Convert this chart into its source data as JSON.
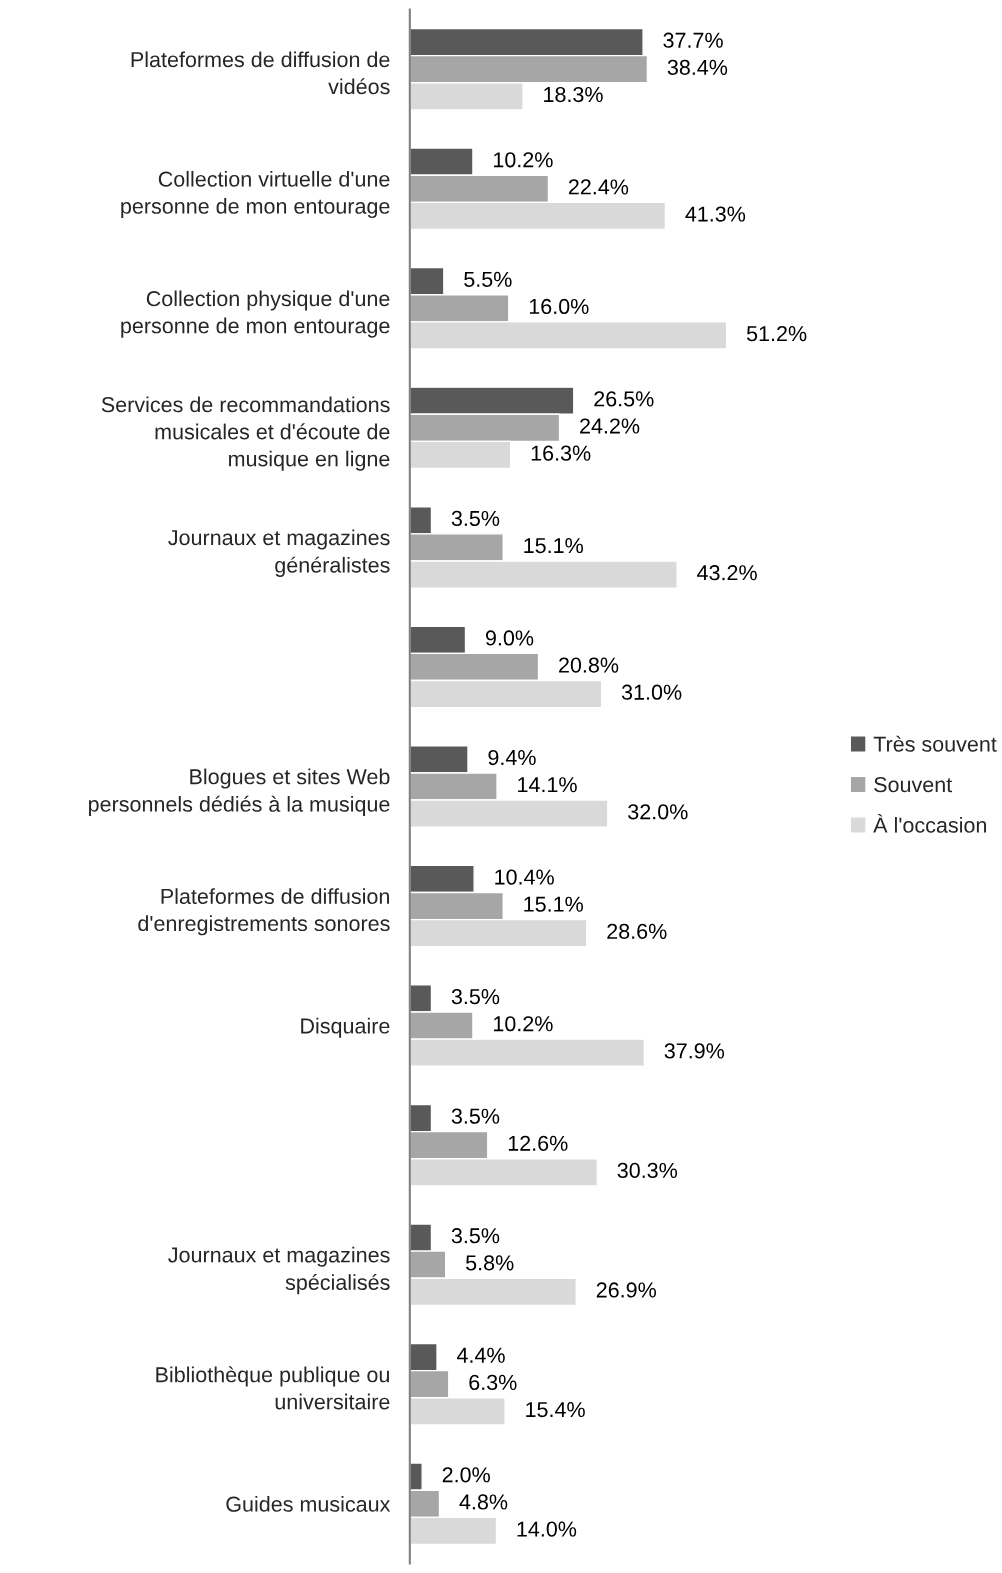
{
  "chart_data": {
    "type": "bar",
    "orientation": "horizontal",
    "categories": [
      "Plateformes de diffusion de\nvidéos",
      "Collection virtuelle d'une\npersonne de mon entourage",
      "Collection physique d'une\npersonne de mon entourage",
      "Services de recommandations\nmusicales et d'écoute de\nmusique en ligne",
      "Journaux et magazines\ngénéralistes",
      null,
      "Blogues et sites Web\npersonnels dédiés à la musique",
      "Plateformes de diffusion\nd'enregistrements sonores",
      "Disquaire",
      null,
      "Journaux et magazines\nspécialisés",
      "Bibliothèque publique ou\nuniversitaire",
      "Guides musicaux"
    ],
    "series": [
      {
        "name": "Très souvent",
        "color": "#595959",
        "values": [
          37.7,
          10.2,
          5.5,
          26.5,
          3.5,
          9.0,
          9.4,
          10.4,
          3.5,
          3.5,
          3.5,
          4.4,
          2.0
        ],
        "value_labels": [
          "37.7%",
          "10.2%",
          "5.5%",
          "26.5%",
          "3.5%",
          "9.0%",
          "9.4%",
          "10.4%",
          "3.5%",
          "3.5%",
          "3.5%",
          "4.4%",
          "2.0%"
        ]
      },
      {
        "name": "Souvent",
        "color": "#a6a6a6",
        "values": [
          38.4,
          22.4,
          16.0,
          24.2,
          15.1,
          20.8,
          14.1,
          15.1,
          10.2,
          12.6,
          5.8,
          6.3,
          4.8
        ],
        "value_labels": [
          "38.4%",
          "22.4%",
          "16.0%",
          "24.2%",
          "15.1%",
          "20.8%",
          "14.1%",
          "15.1%",
          "10.2%",
          "12.6%",
          "5.8%",
          "6.3%",
          "4.8%"
        ]
      },
      {
        "name": "À l'occasion",
        "color": "#d9d9d9",
        "values": [
          18.3,
          41.3,
          51.2,
          16.3,
          43.2,
          31.0,
          32.0,
          28.6,
          37.9,
          30.3,
          26.9,
          15.4,
          14.0
        ],
        "value_labels": [
          "18.3%",
          "41.3%",
          "51.2%",
          "16.3%",
          "43.2%",
          "31.0%",
          "32.0%",
          "28.6%",
          "37.9%",
          "30.3%",
          "26.9%",
          "15.4%",
          "14.0%"
        ]
      }
    ],
    "tick_labels": "y",
    "grid": false,
    "legend": "right"
  }
}
